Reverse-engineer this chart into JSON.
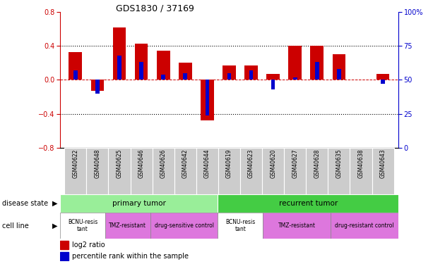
{
  "title": "GDS1830 / 37169",
  "samples": [
    "GSM40622",
    "GSM40648",
    "GSM40625",
    "GSM40646",
    "GSM40626",
    "GSM40642",
    "GSM40644",
    "GSM40619",
    "GSM40623",
    "GSM40620",
    "GSM40627",
    "GSM40628",
    "GSM40635",
    "GSM40638",
    "GSM40643"
  ],
  "log2_ratio": [
    0.33,
    -0.13,
    0.62,
    0.43,
    0.34,
    0.2,
    -0.48,
    0.17,
    0.17,
    0.07,
    0.4,
    0.4,
    0.3,
    0.0,
    0.07
  ],
  "pct_rank": [
    57,
    40,
    68,
    63,
    54,
    55,
    24,
    55,
    57,
    43,
    52,
    63,
    58,
    50,
    47
  ],
  "bar_color_red": "#cc0000",
  "bar_color_blue": "#0000cc",
  "ylim_left": [
    -0.8,
    0.8
  ],
  "ylim_right": [
    0,
    100
  ],
  "yticks_left": [
    -0.8,
    -0.4,
    0.0,
    0.4,
    0.8
  ],
  "yticks_right": [
    0,
    25,
    50,
    75,
    100
  ],
  "disease_state_color_primary": "#99ee99",
  "disease_state_color_recurrent": "#44cc44",
  "cell_line_color_white": "#ffffff",
  "cell_line_color_pink": "#dd77dd",
  "sample_label_bg": "#cccccc",
  "legend_log2": "log2 ratio",
  "legend_pct": "percentile rank within the sample",
  "cell_groups": [
    {
      "label": "BCNU-resis\ntant",
      "start": 0,
      "end": 2,
      "color": "#ffffff"
    },
    {
      "label": "TMZ-resistant",
      "start": 2,
      "end": 4,
      "color": "#dd77dd"
    },
    {
      "label": "drug-sensitive control",
      "start": 4,
      "end": 7,
      "color": "#dd77dd"
    },
    {
      "label": "BCNU-resis\ntant",
      "start": 7,
      "end": 9,
      "color": "#ffffff"
    },
    {
      "label": "TMZ-resistant",
      "start": 9,
      "end": 12,
      "color": "#dd77dd"
    },
    {
      "label": "drug-resistant control",
      "start": 12,
      "end": 15,
      "color": "#dd77dd"
    }
  ]
}
